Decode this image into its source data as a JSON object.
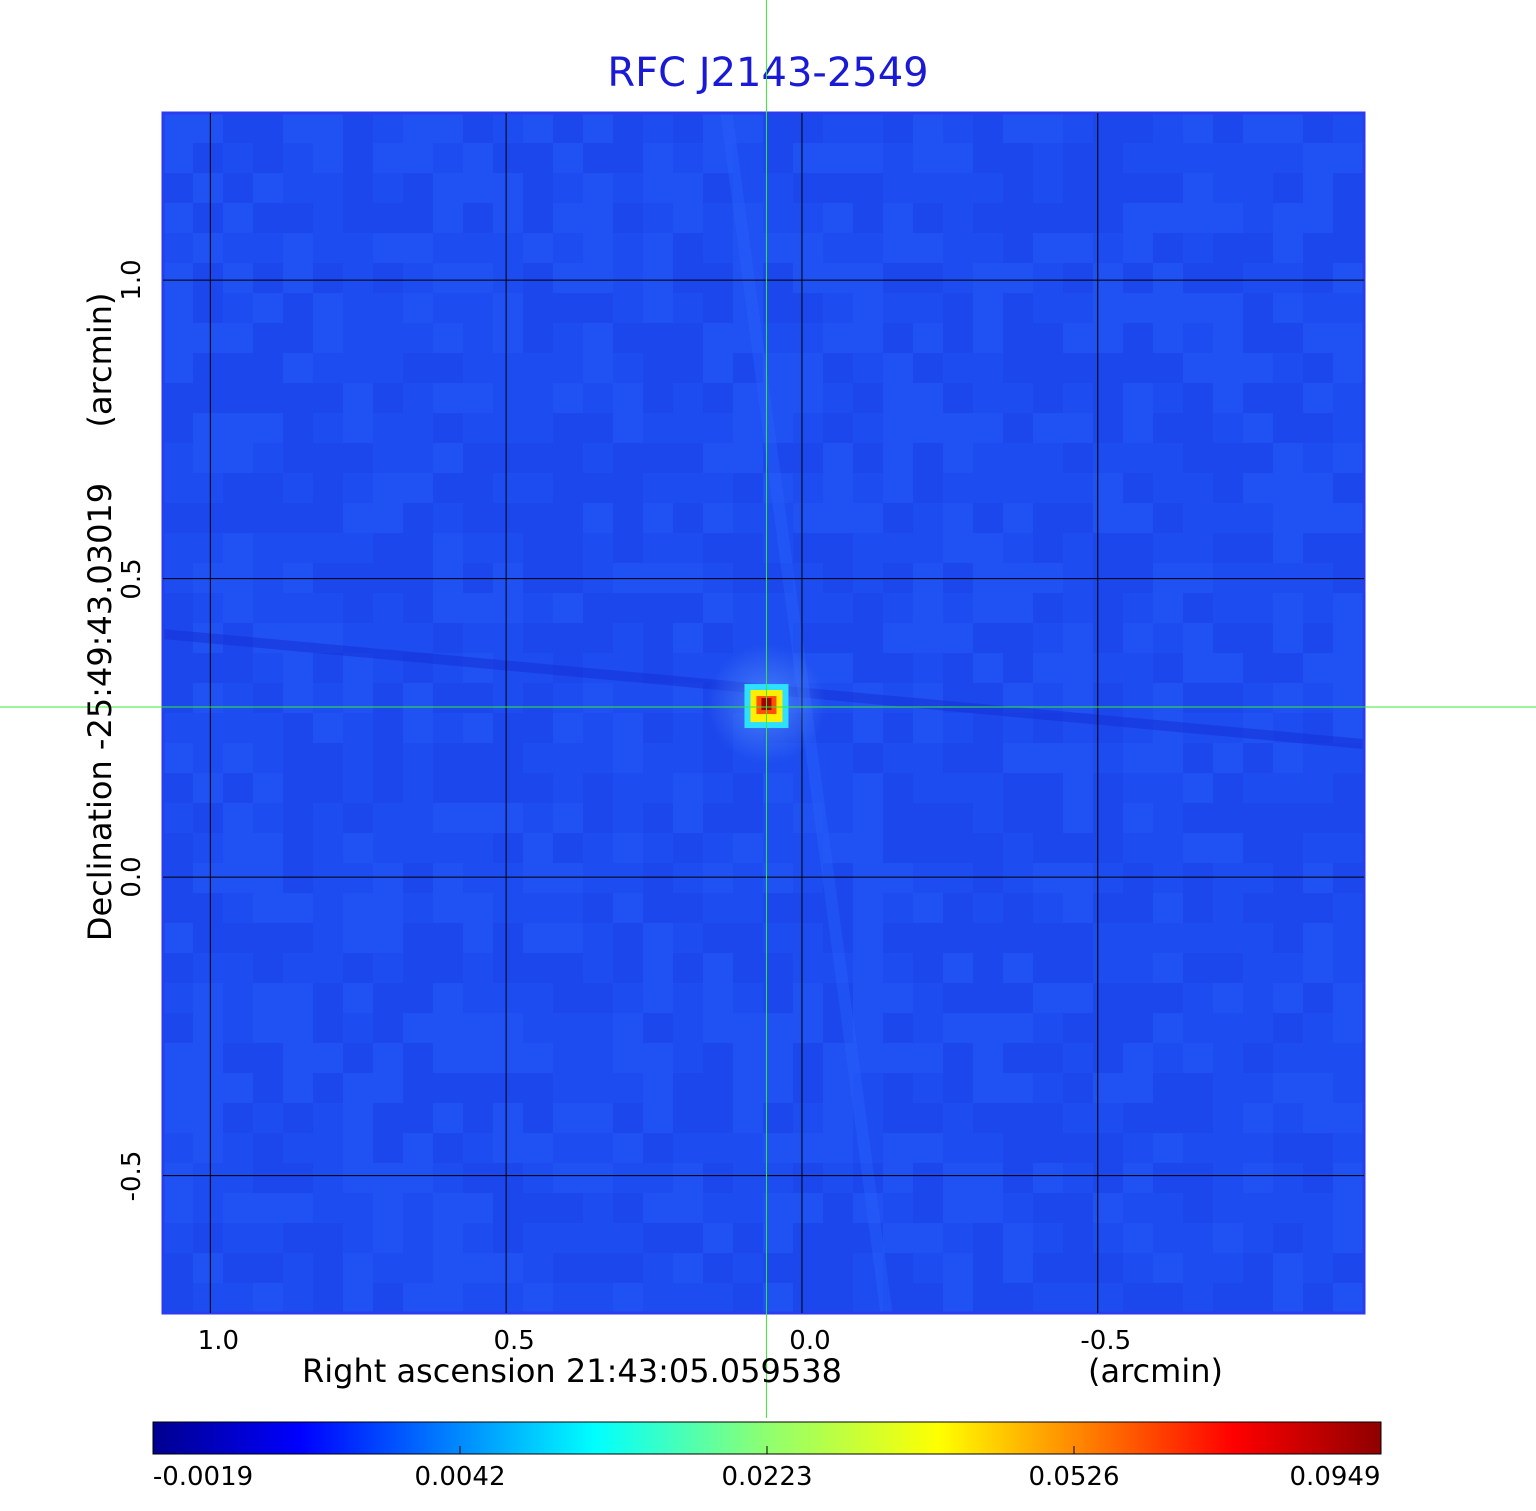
{
  "chart_data": {
    "type": "heatmap",
    "title": "RFC J2143-2549",
    "xlabel": "Right ascension  21:43:05.059538",
    "xlabel_unit": "(arcmin)",
    "ylabel": "Declination  -25:49:43.03019",
    "ylabel_unit": "(arcmin)",
    "x_ticks": [
      "1.0",
      "0.5",
      "0.0",
      "-0.5"
    ],
    "x_tick_values": [
      1.0,
      0.5,
      0.0,
      -0.5
    ],
    "y_ticks": [
      "1.0",
      "0.5",
      "0.0",
      "-0.5"
    ],
    "y_tick_values": [
      1.0,
      0.5,
      0.0,
      -0.5
    ],
    "xlim": [
      1.08,
      -0.95
    ],
    "ylim": [
      -0.73,
      1.28
    ],
    "grid": true,
    "crosshair": {
      "x": 0.06,
      "y": 0.285
    },
    "source_peak": {
      "x": 0.06,
      "y": 0.29,
      "value": 0.0949
    },
    "colorbar": {
      "ticks": [
        "-0.0019",
        "0.0042",
        "0.0223",
        "0.0526",
        "0.0949"
      ],
      "min": -0.0019,
      "max": 0.0949,
      "colormap": "jet",
      "placement": "bottom"
    },
    "colors": {
      "background_field": "#1e4cf0",
      "frame": "#2a3cf0",
      "crosshair": "#33ee33",
      "title": "#1a1ad6",
      "grid": "#000000"
    }
  }
}
